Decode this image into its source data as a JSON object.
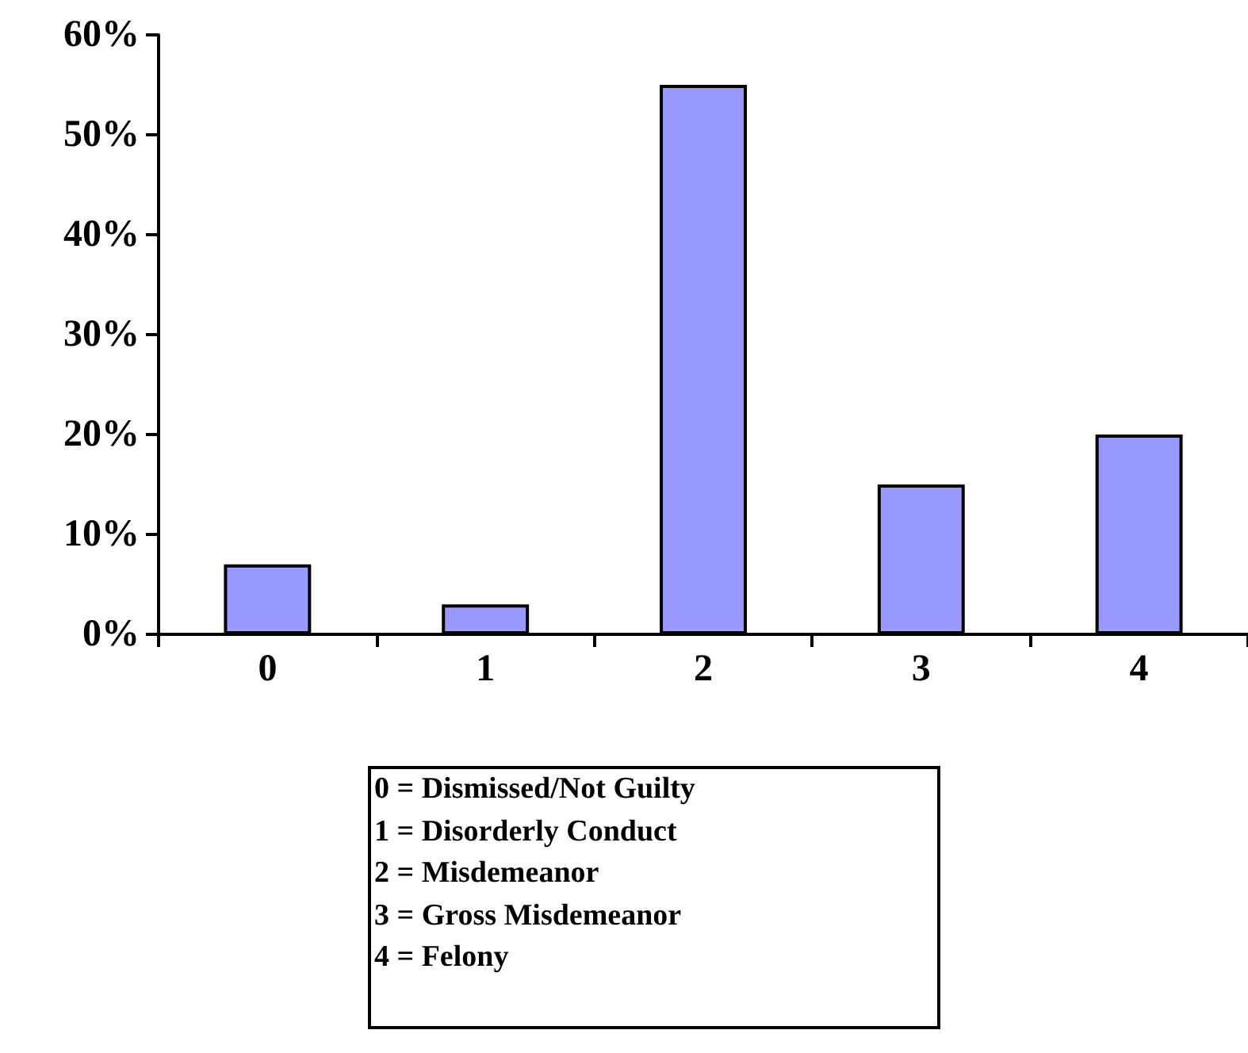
{
  "chart_data": {
    "type": "bar",
    "categories": [
      "0",
      "1",
      "2",
      "3",
      "4"
    ],
    "values": [
      7,
      3,
      55,
      15,
      20
    ],
    "color": "#9999ff",
    "ylim": [
      0,
      60
    ],
    "yticks": [
      {
        "value": 0,
        "label": "0%"
      },
      {
        "value": 10,
        "label": "10%"
      },
      {
        "value": 20,
        "label": "20%"
      },
      {
        "value": 30,
        "label": "30%"
      },
      {
        "value": 40,
        "label": "40%"
      },
      {
        "value": 50,
        "label": "50%"
      },
      {
        "value": 60,
        "label": "60%"
      }
    ],
    "grid": false,
    "annotations": [
      "0 = Dismissed/Not Guilty",
      "1 = Disorderly Conduct",
      "2 = Misdemeanor",
      "3 = Gross Misdemeanor",
      "4 = Felony"
    ]
  }
}
